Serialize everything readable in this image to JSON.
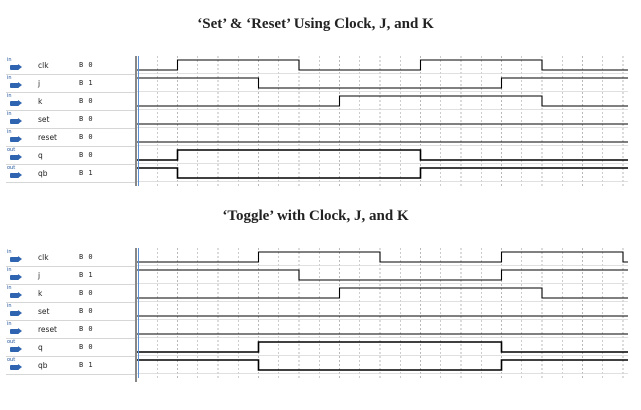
{
  "panels": [
    {
      "title": "‘Set’ & ‘Reset’ Using Clock, J, and K",
      "signals": [
        {
          "dir": "in",
          "name": "clk",
          "value": "B 0",
          "levels": [
            0,
            1,
            1,
            1,
            0,
            0,
            0,
            1,
            1,
            1,
            0,
            0,
            0
          ]
        },
        {
          "dir": "in",
          "name": "j",
          "value": "B 1",
          "levels": [
            1,
            1,
            1,
            0,
            0,
            0,
            0,
            0,
            0,
            1,
            1,
            1,
            1
          ]
        },
        {
          "dir": "in",
          "name": "k",
          "value": "B 0",
          "levels": [
            0,
            0,
            0,
            0,
            0,
            1,
            1,
            1,
            1,
            1,
            0,
            0,
            0
          ]
        },
        {
          "dir": "in",
          "name": "set",
          "value": "B 0",
          "levels": [
            0,
            0,
            0,
            0,
            0,
            0,
            0,
            0,
            0,
            0,
            0,
            0,
            0
          ]
        },
        {
          "dir": "in",
          "name": "reset",
          "value": "B 0",
          "levels": [
            0,
            0,
            0,
            0,
            0,
            0,
            0,
            0,
            0,
            0,
            0,
            0,
            0
          ]
        },
        {
          "dir": "out",
          "name": "q",
          "value": "B 0",
          "levels": [
            0,
            1,
            1,
            1,
            1,
            1,
            1,
            0,
            0,
            0,
            0,
            0,
            0
          ]
        },
        {
          "dir": "out",
          "name": "qb",
          "value": "B 1",
          "levels": [
            1,
            0,
            0,
            0,
            0,
            0,
            0,
            1,
            1,
            1,
            1,
            1,
            1
          ]
        }
      ]
    },
    {
      "title": "‘Toggle’ with Clock, J, and K",
      "signals": [
        {
          "dir": "in",
          "name": "clk",
          "value": "B 0",
          "levels": [
            0,
            0,
            0,
            1,
            1,
            1,
            0,
            0,
            0,
            1,
            1,
            1,
            0
          ]
        },
        {
          "dir": "in",
          "name": "j",
          "value": "B 1",
          "levels": [
            1,
            1,
            1,
            1,
            0,
            0,
            0,
            0,
            0,
            1,
            1,
            1,
            1
          ]
        },
        {
          "dir": "in",
          "name": "k",
          "value": "B 0",
          "levels": [
            0,
            0,
            0,
            0,
            0,
            1,
            1,
            1,
            1,
            1,
            0,
            0,
            0
          ]
        },
        {
          "dir": "in",
          "name": "set",
          "value": "B 0",
          "levels": [
            0,
            0,
            0,
            0,
            0,
            0,
            0,
            0,
            0,
            0,
            0,
            0,
            0
          ]
        },
        {
          "dir": "in",
          "name": "reset",
          "value": "B 0",
          "levels": [
            0,
            0,
            0,
            0,
            0,
            0,
            0,
            0,
            0,
            0,
            0,
            0,
            0
          ]
        },
        {
          "dir": "out",
          "name": "q",
          "value": "B 0",
          "levels": [
            0,
            0,
            0,
            1,
            1,
            1,
            1,
            1,
            1,
            0,
            0,
            0,
            0
          ]
        },
        {
          "dir": "out",
          "name": "qb",
          "value": "B 1",
          "levels": [
            1,
            1,
            1,
            0,
            0,
            0,
            0,
            0,
            0,
            1,
            1,
            1,
            1
          ]
        }
      ]
    }
  ],
  "colors": {
    "wave": "#000000",
    "grid": "#9a9a9a",
    "row_border": "#d6d6d6",
    "icon": "#2f65b0"
  },
  "icons": {
    "in": "input-port-icon",
    "out": "output-port-icon"
  }
}
